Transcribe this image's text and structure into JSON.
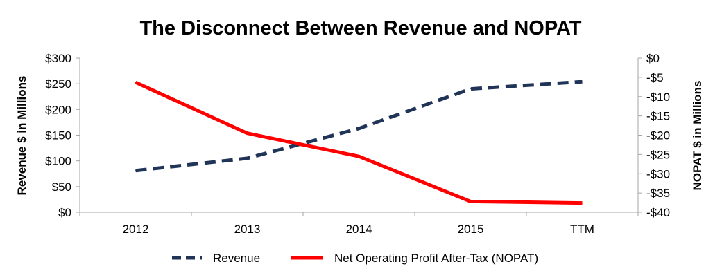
{
  "chart_data": {
    "type": "line",
    "title": "The Disconnect Between Revenue and NOPAT",
    "categories": [
      "2012",
      "2013",
      "2014",
      "2015",
      "TTM"
    ],
    "y_left": {
      "label": "Revenue $ in Millions",
      "ylim": [
        0,
        300
      ],
      "ticks": [
        "$0",
        "$50",
        "$100",
        "$150",
        "$200",
        "$250",
        "$300"
      ]
    },
    "y_right": {
      "label": "NOPAT $ in Millions",
      "ylim": [
        -40,
        0
      ],
      "ticks": [
        "-$40",
        "-$35",
        "-$30",
        "-$25",
        "-$20",
        "-$15",
        "-$10",
        "-$5",
        "$0"
      ]
    },
    "series": [
      {
        "name": "Revenue",
        "axis": "left",
        "style": "dashed",
        "color": "#1f3457",
        "values": [
          81,
          105,
          163,
          240,
          254
        ]
      },
      {
        "name": "Net Operating Profit After-Tax (NOPAT)",
        "axis": "right",
        "style": "solid",
        "color": "#ff0000",
        "values": [
          -6.3,
          -19.5,
          -25.5,
          -37.2,
          -37.6
        ]
      }
    ],
    "grid": false,
    "legend_position": "bottom"
  }
}
